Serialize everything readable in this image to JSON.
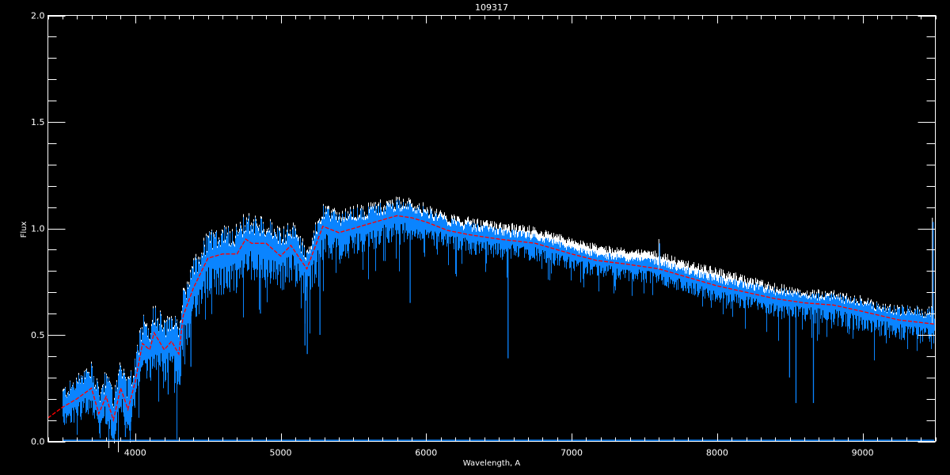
{
  "chart_data": {
    "type": "line",
    "title": "109317",
    "xlabel": "Wavelength, A",
    "ylabel": "Flux",
    "xlim": [
      3400,
      9500
    ],
    "ylim": [
      0,
      2
    ],
    "grid": false,
    "background": "#000000",
    "axis_color": "#ffffff",
    "xticks": [
      4000,
      5000,
      6000,
      7000,
      8000,
      9000
    ],
    "xtick_labels": [
      "4000",
      "5000",
      "6000",
      "7000",
      "8000",
      "9000"
    ],
    "xminor_step": 100,
    "yticks": [
      0,
      0.5,
      1,
      1.5,
      2
    ],
    "ytick_labels": [
      "0.0",
      "0.5",
      "1.0",
      "1.5",
      "2.0"
    ],
    "yminor_step": 0.1,
    "model": {
      "color": "#ff0000",
      "style": "dashed",
      "x": [
        3400,
        3500,
        3600,
        3700,
        3750,
        3800,
        3850,
        3900,
        3950,
        4000,
        4050,
        4100,
        4130,
        4200,
        4250,
        4300,
        4330,
        4400,
        4500,
        4600,
        4700,
        4760,
        4800,
        4900,
        5000,
        5070,
        5180,
        5290,
        5400,
        5500,
        5600,
        5700,
        5800,
        5900,
        6000,
        6150,
        6300,
        6500,
        6750,
        7000,
        7170,
        7400,
        7600,
        7800,
        8000,
        8200,
        8400,
        8600,
        8800,
        9000,
        9250,
        9500
      ],
      "y": [
        0.11,
        0.16,
        0.2,
        0.25,
        0.13,
        0.21,
        0.1,
        0.25,
        0.15,
        0.28,
        0.46,
        0.43,
        0.51,
        0.43,
        0.47,
        0.41,
        0.59,
        0.72,
        0.86,
        0.88,
        0.88,
        0.95,
        0.93,
        0.93,
        0.87,
        0.92,
        0.81,
        1.01,
        0.98,
        1.0,
        1.02,
        1.04,
        1.06,
        1.05,
        1.03,
        0.99,
        0.97,
        0.95,
        0.93,
        0.88,
        0.85,
        0.83,
        0.81,
        0.77,
        0.73,
        0.7,
        0.67,
        0.65,
        0.64,
        0.61,
        0.57,
        0.55
      ]
    },
    "observed": {
      "color": "#0a84ff",
      "x_start": 3500,
      "band_x": [
        3500,
        4000,
        4400,
        5000,
        6000,
        7000,
        8000,
        9000,
        9500
      ],
      "above_model": [
        0.1,
        0.15,
        0.14,
        0.12,
        0.07,
        0.04,
        0.05,
        0.06,
        0.08
      ],
      "below_model": [
        0.1,
        0.15,
        0.2,
        0.18,
        0.1,
        0.08,
        0.08,
        0.1,
        0.1
      ],
      "baseline_flux": 0.005,
      "absorption_lines": [
        {
          "x": 3933,
          "min": 0.02
        },
        {
          "x": 3968,
          "min": 0.05
        },
        {
          "x": 4227,
          "min": 0.22
        },
        {
          "x": 4300,
          "min": 0.28
        },
        {
          "x": 4383,
          "min": 0.35
        },
        {
          "x": 4861,
          "min": 0.6
        },
        {
          "x": 5167,
          "min": 0.45
        },
        {
          "x": 5183,
          "min": 0.41
        },
        {
          "x": 5270,
          "min": 0.5
        },
        {
          "x": 5890,
          "min": 0.65
        },
        {
          "x": 6563,
          "min": 0.39
        },
        {
          "x": 8498,
          "min": 0.3
        },
        {
          "x": 8542,
          "min": 0.18
        },
        {
          "x": 8662,
          "min": 0.18
        }
      ],
      "emission_features": [
        {
          "x": 7605,
          "max": 0.95
        },
        {
          "x": 9485,
          "max": 1.05
        }
      ]
    },
    "comparison": {
      "color": "#ffffff",
      "band_x": [
        3500,
        6000,
        6500,
        7000,
        8000,
        8500,
        9500
      ],
      "above_observed": [
        0.0,
        0.01,
        0.02,
        0.03,
        0.03,
        0.01,
        0.0
      ]
    }
  }
}
